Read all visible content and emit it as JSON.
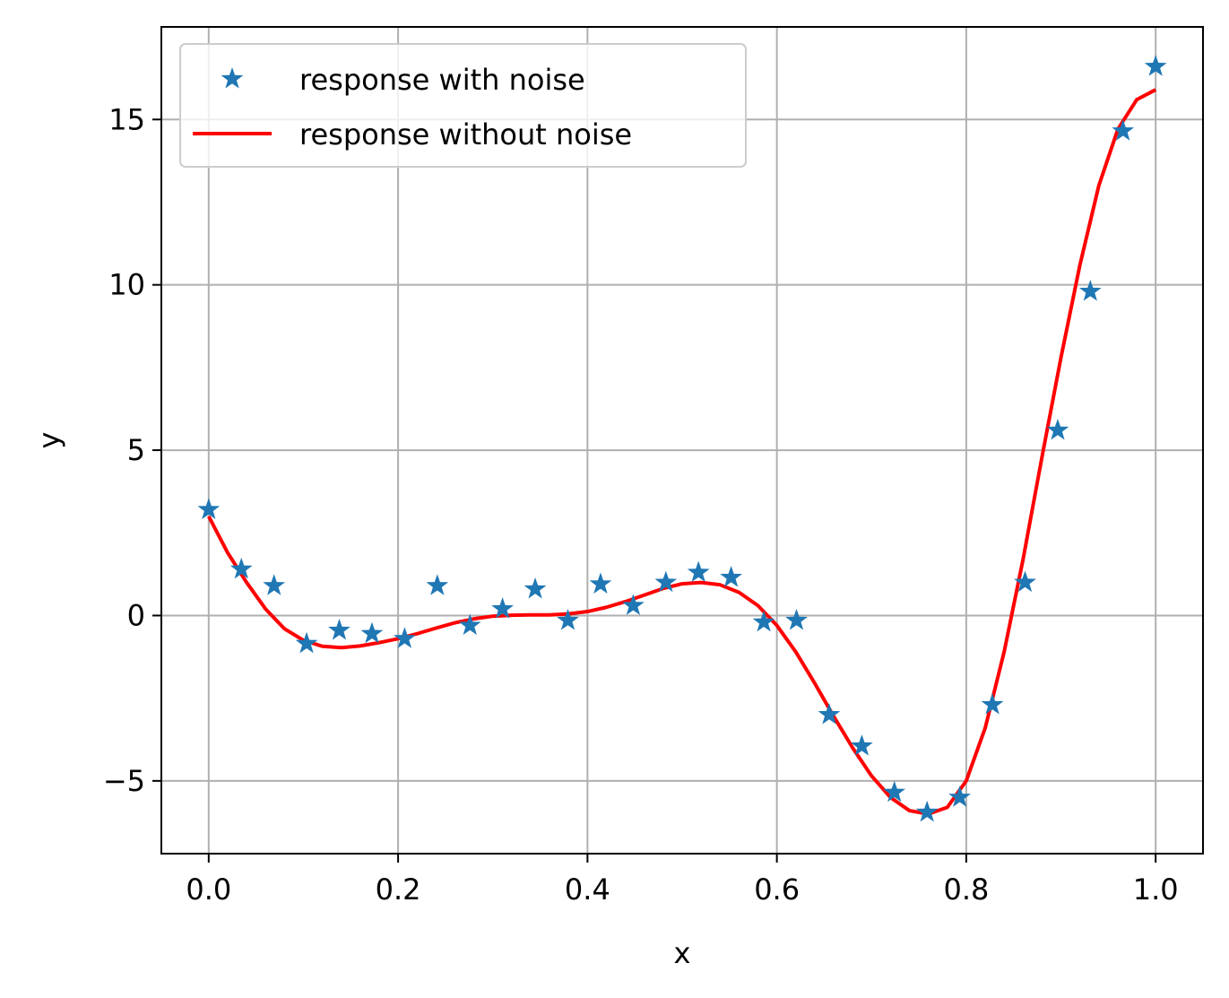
{
  "chart_data": {
    "type": "line",
    "title": "",
    "xlabel": "x",
    "ylabel": "y",
    "xlim": [
      -0.05,
      1.05
    ],
    "ylim": [
      -7.2,
      17.8
    ],
    "xticks": [
      0.0,
      0.2,
      0.4,
      0.6,
      0.8,
      1.0
    ],
    "xtick_labels": [
      "0.0",
      "0.2",
      "0.4",
      "0.6",
      "0.8",
      "1.0"
    ],
    "yticks": [
      -5,
      0,
      5,
      10,
      15
    ],
    "ytick_labels": [
      "−5",
      "0",
      "5",
      "10",
      "15"
    ],
    "grid": true,
    "legend_position": "top-left",
    "series": [
      {
        "name": "response with noise",
        "kind": "scatter",
        "marker": "star",
        "color": "#1f77b4",
        "x": [
          0.0,
          0.0345,
          0.069,
          0.1034,
          0.1379,
          0.1724,
          0.2069,
          0.2414,
          0.2759,
          0.3103,
          0.3448,
          0.3793,
          0.4138,
          0.4483,
          0.4828,
          0.5172,
          0.5517,
          0.5862,
          0.6207,
          0.6552,
          0.6897,
          0.7241,
          0.7586,
          0.7931,
          0.8276,
          0.8621,
          0.8966,
          0.931,
          0.9655,
          1.0
        ],
        "y": [
          3.2,
          1.4,
          0.9,
          -0.85,
          -0.45,
          -0.55,
          -0.7,
          0.9,
          -0.3,
          0.2,
          0.8,
          -0.15,
          0.95,
          0.3,
          1.0,
          1.3,
          1.15,
          -0.2,
          -0.15,
          -3.0,
          -3.95,
          -5.35,
          -5.95,
          -5.5,
          -2.7,
          1.0,
          5.6,
          9.8,
          14.65,
          16.6
        ]
      },
      {
        "name": "response without noise",
        "kind": "line",
        "color": "#ff0000",
        "x": [
          0.0,
          0.02,
          0.04,
          0.06,
          0.08,
          0.1,
          0.12,
          0.14,
          0.16,
          0.18,
          0.2,
          0.22,
          0.24,
          0.26,
          0.28,
          0.3,
          0.32,
          0.34,
          0.36,
          0.38,
          0.4,
          0.42,
          0.44,
          0.46,
          0.48,
          0.5,
          0.52,
          0.54,
          0.56,
          0.58,
          0.6,
          0.62,
          0.64,
          0.66,
          0.68,
          0.7,
          0.72,
          0.74,
          0.76,
          0.78,
          0.8,
          0.82,
          0.84,
          0.86,
          0.88,
          0.9,
          0.92,
          0.94,
          0.96,
          0.98,
          1.0
        ],
        "y": [
          3.0,
          1.9,
          1.0,
          0.2,
          -0.4,
          -0.75,
          -0.93,
          -0.97,
          -0.92,
          -0.82,
          -0.7,
          -0.55,
          -0.38,
          -0.22,
          -0.1,
          -0.02,
          0.01,
          0.02,
          0.02,
          0.05,
          0.12,
          0.25,
          0.42,
          0.62,
          0.82,
          0.96,
          1.0,
          0.93,
          0.7,
          0.3,
          -0.3,
          -1.1,
          -2.05,
          -3.05,
          -4.0,
          -4.85,
          -5.5,
          -5.9,
          -6.0,
          -5.8,
          -5.0,
          -3.4,
          -1.1,
          1.7,
          4.8,
          7.8,
          10.6,
          13.0,
          14.7,
          15.6,
          15.9
        ]
      }
    ]
  }
}
